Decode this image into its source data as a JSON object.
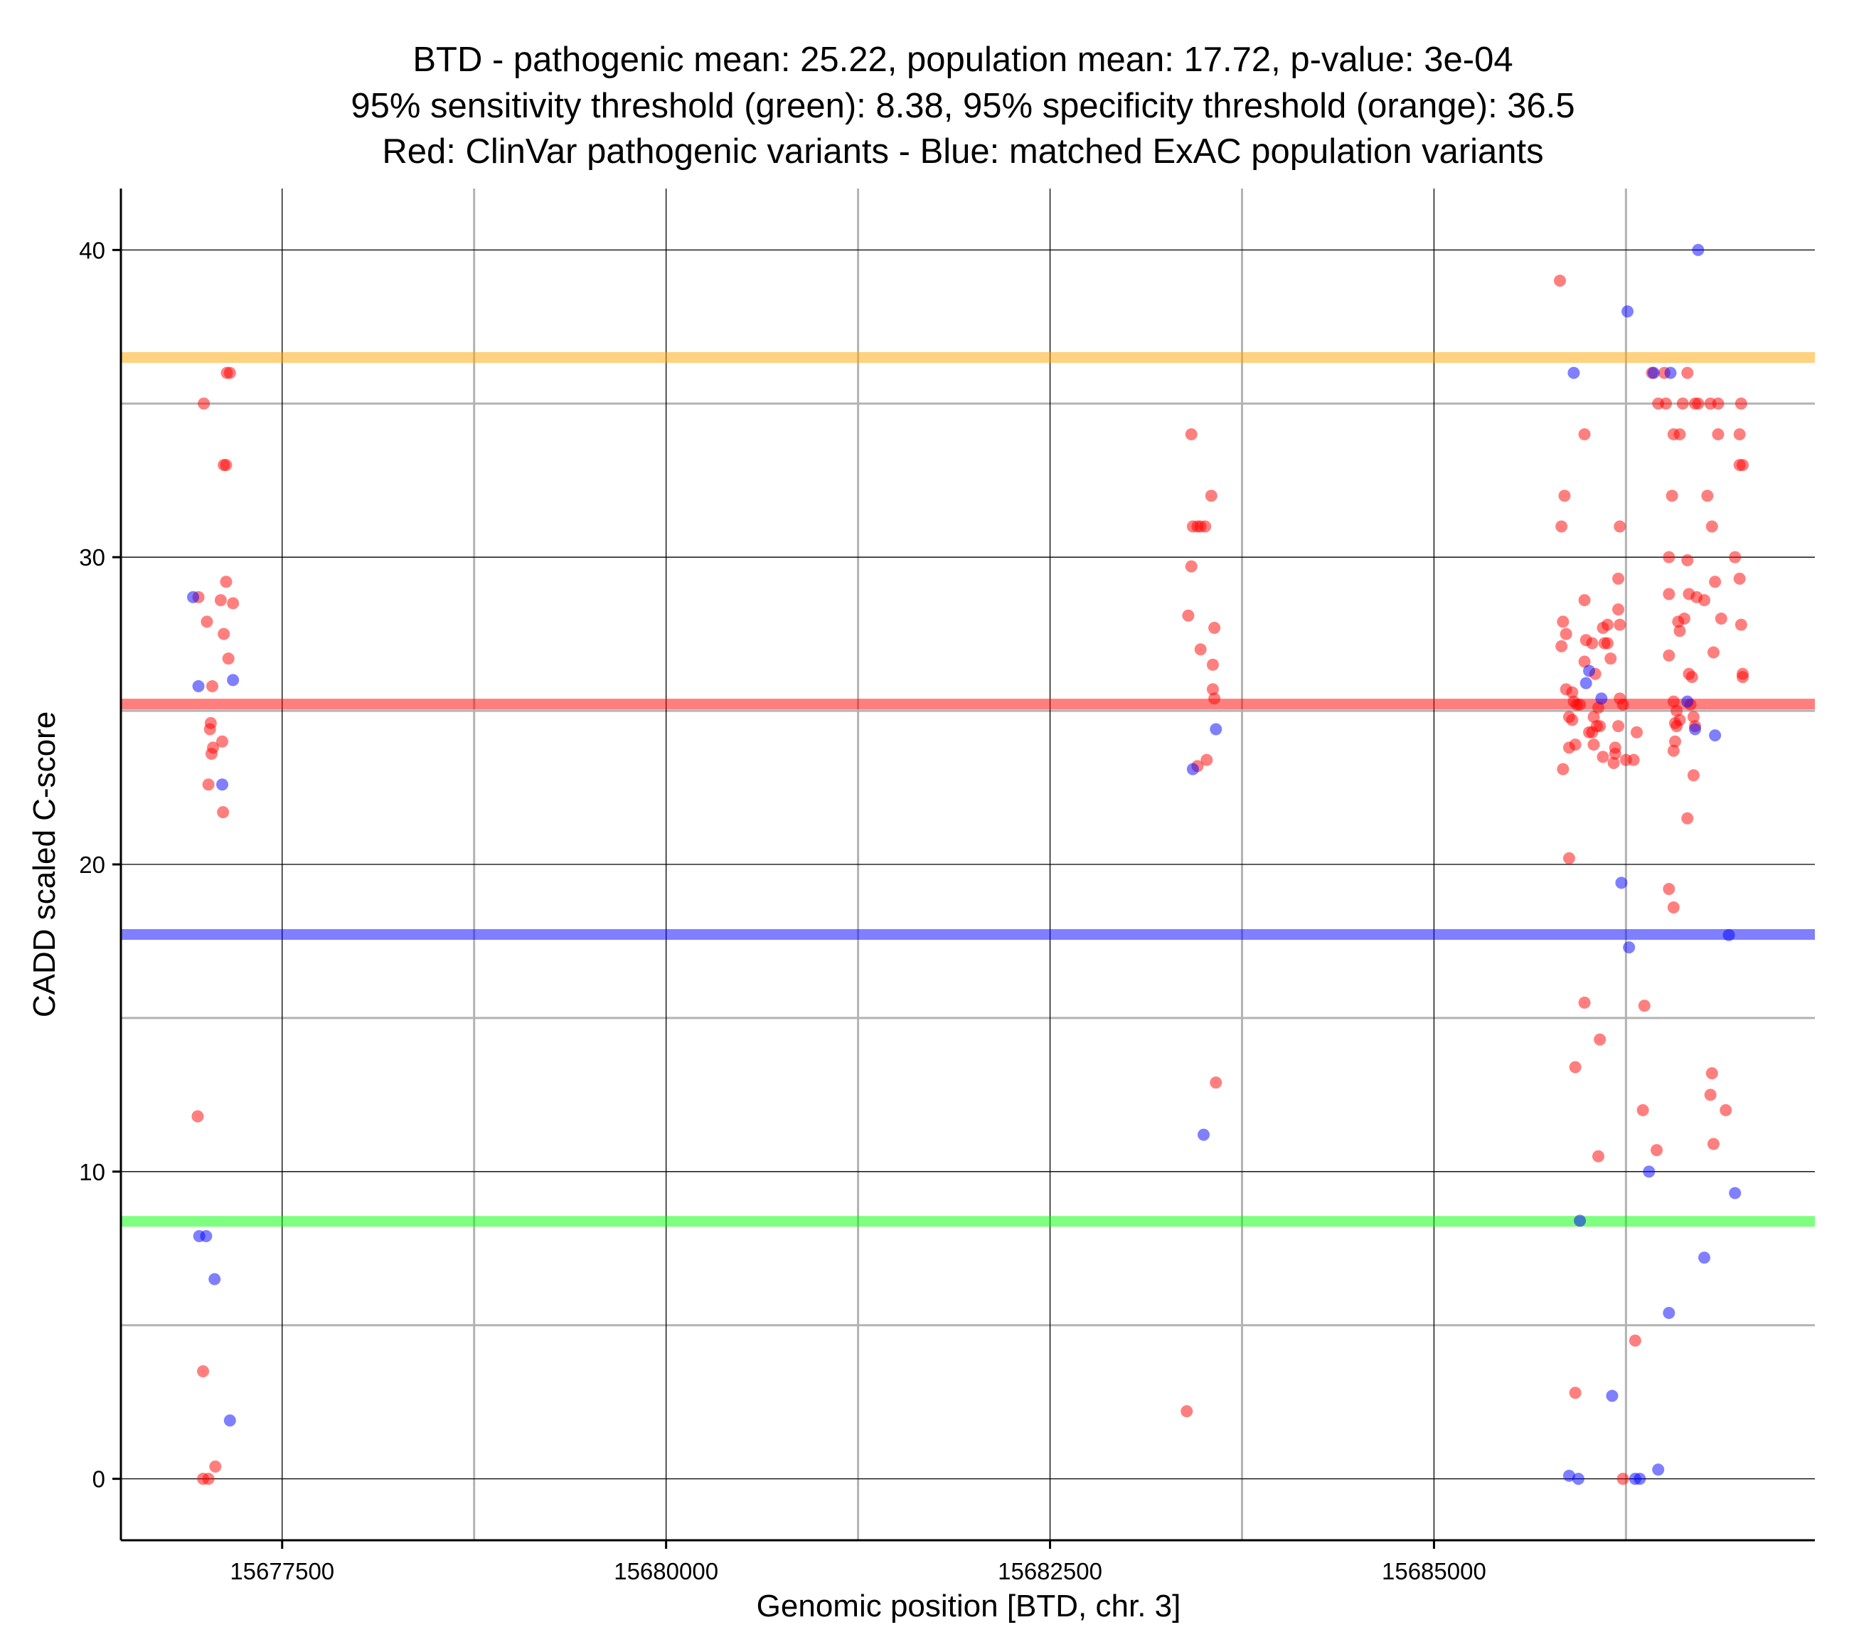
{
  "chart_data": {
    "type": "scatter",
    "title": [
      "BTD - pathogenic mean: 25.22, population mean: 17.72, p-value: 3e-04",
      "95% sensitivity threshold (green): 8.38, 95% specificity threshold (orange): 36.5",
      "Red: ClinVar pathogenic variants - Blue: matched ExAC population variants"
    ],
    "xlabel": "Genomic position [BTD, chr. 3]",
    "ylabel": "CADD scaled C-score",
    "xlim": [
      15676450,
      15687480
    ],
    "ylim": [
      -2,
      42
    ],
    "xticks": [
      15677500,
      15680000,
      15682500,
      15685000
    ],
    "xtick_labels": [
      "15677500",
      "15680000",
      "15682500",
      "15685000"
    ],
    "xminor": [
      15678750,
      15681250,
      15683750,
      15686250
    ],
    "yticks": [
      0,
      10,
      20,
      30,
      40
    ],
    "ytick_labels": [
      "0",
      "10",
      "20",
      "30",
      "40"
    ],
    "yminor": [
      5,
      15,
      25,
      35
    ],
    "hlines": [
      {
        "name": "specificity-threshold",
        "value": 36.5,
        "color": "#FFA500",
        "opacity": 0.5
      },
      {
        "name": "pathogenic-mean",
        "value": 25.22,
        "color": "#FF0000",
        "opacity": 0.5
      },
      {
        "name": "population-mean",
        "value": 17.72,
        "color": "#0000FF",
        "opacity": 0.5
      },
      {
        "name": "sensitivity-threshold",
        "value": 8.38,
        "color": "#00FF00",
        "opacity": 0.5
      }
    ],
    "series": [
      {
        "name": "ClinVar pathogenic variants",
        "color": "#FF0000",
        "opacity": 0.5,
        "points": [
          [
            15677160,
            36.0
          ],
          [
            15677140,
            36.0
          ],
          [
            15676990,
            35.0
          ],
          [
            15677120,
            33.0
          ],
          [
            15677135,
            33.0
          ],
          [
            15677135,
            29.2
          ],
          [
            15677100,
            28.6
          ],
          [
            15677180,
            28.5
          ],
          [
            15676955,
            28.7
          ],
          [
            15677010,
            27.9
          ],
          [
            15677120,
            27.5
          ],
          [
            15677150,
            26.7
          ],
          [
            15677045,
            25.8
          ],
          [
            15677035,
            24.6
          ],
          [
            15677030,
            24.4
          ],
          [
            15677110,
            24.0
          ],
          [
            15677050,
            23.8
          ],
          [
            15677040,
            23.6
          ],
          [
            15677020,
            22.6
          ],
          [
            15677115,
            21.7
          ],
          [
            15676950,
            11.8
          ],
          [
            15676985,
            3.5
          ],
          [
            15677065,
            0.4
          ],
          [
            15676985,
            0.0
          ],
          [
            15677020,
            0.0
          ],
          [
            15683420,
            34.0
          ],
          [
            15683550,
            32.0
          ],
          [
            15683430,
            31.0
          ],
          [
            15683460,
            31.0
          ],
          [
            15683480,
            31.0
          ],
          [
            15683510,
            31.0
          ],
          [
            15683420,
            29.7
          ],
          [
            15683400,
            28.1
          ],
          [
            15683570,
            27.7
          ],
          [
            15683480,
            27.0
          ],
          [
            15683560,
            26.5
          ],
          [
            15683560,
            25.7
          ],
          [
            15683570,
            25.4
          ],
          [
            15683520,
            23.4
          ],
          [
            15683460,
            23.2
          ],
          [
            15683580,
            12.9
          ],
          [
            15683390,
            2.2
          ],
          [
            15685820,
            39.0
          ],
          [
            15685850,
            32.0
          ],
          [
            15685830,
            31.0
          ],
          [
            15685840,
            27.9
          ],
          [
            15685860,
            27.5
          ],
          [
            15685830,
            27.1
          ],
          [
            15685860,
            25.7
          ],
          [
            15685880,
            24.8
          ],
          [
            15685900,
            25.6
          ],
          [
            15685910,
            25.3
          ],
          [
            15685930,
            25.2
          ],
          [
            15685950,
            25.2
          ],
          [
            15685980,
            28.6
          ],
          [
            15685980,
            26.6
          ],
          [
            15685990,
            27.3
          ],
          [
            15686030,
            27.2
          ],
          [
            15686050,
            26.2
          ],
          [
            15686070,
            25.1
          ],
          [
            15686100,
            27.7
          ],
          [
            15686110,
            27.2
          ],
          [
            15686130,
            27.8
          ],
          [
            15686130,
            27.2
          ],
          [
            15686010,
            24.3
          ],
          [
            15686030,
            24.3
          ],
          [
            15686060,
            24.5
          ],
          [
            15686080,
            24.5
          ],
          [
            15686040,
            24.8
          ],
          [
            15685900,
            24.7
          ],
          [
            15685880,
            23.8
          ],
          [
            15685920,
            23.9
          ],
          [
            15686100,
            23.5
          ],
          [
            15686150,
            26.7
          ],
          [
            15686170,
            23.3
          ],
          [
            15686180,
            23.6
          ],
          [
            15686180,
            23.8
          ],
          [
            15686040,
            23.9
          ],
          [
            15685840,
            23.1
          ],
          [
            15685880,
            20.2
          ],
          [
            15685980,
            34.0
          ],
          [
            15686210,
            31.0
          ],
          [
            15686200,
            29.3
          ],
          [
            15686200,
            28.3
          ],
          [
            15686210,
            27.8
          ],
          [
            15686210,
            25.4
          ],
          [
            15686200,
            24.5
          ],
          [
            15686230,
            25.2
          ],
          [
            15686250,
            23.4
          ],
          [
            15686300,
            23.4
          ],
          [
            15686320,
            24.3
          ],
          [
            15685980,
            15.5
          ],
          [
            15686080,
            14.3
          ],
          [
            15685920,
            13.4
          ],
          [
            15686070,
            10.5
          ],
          [
            15685920,
            2.8
          ],
          [
            15686230,
            0.0
          ],
          [
            15686420,
            36.0
          ],
          [
            15686500,
            36.0
          ],
          [
            15686650,
            36.0
          ],
          [
            15686460,
            35.0
          ],
          [
            15686510,
            35.0
          ],
          [
            15686620,
            35.0
          ],
          [
            15686700,
            35.0
          ],
          [
            15686720,
            35.0
          ],
          [
            15686800,
            35.0
          ],
          [
            15686850,
            35.0
          ],
          [
            15687000,
            35.0
          ],
          [
            15686560,
            34.0
          ],
          [
            15686600,
            34.0
          ],
          [
            15686850,
            34.0
          ],
          [
            15686990,
            34.0
          ],
          [
            15686990,
            33.0
          ],
          [
            15687010,
            33.0
          ],
          [
            15686550,
            32.0
          ],
          [
            15686780,
            32.0
          ],
          [
            15686810,
            31.0
          ],
          [
            15686530,
            30.0
          ],
          [
            15686650,
            29.9
          ],
          [
            15686960,
            30.0
          ],
          [
            15686990,
            29.3
          ],
          [
            15686830,
            29.2
          ],
          [
            15686530,
            28.8
          ],
          [
            15686660,
            28.8
          ],
          [
            15686710,
            28.7
          ],
          [
            15686760,
            28.6
          ],
          [
            15686630,
            28.0
          ],
          [
            15686590,
            27.9
          ],
          [
            15686870,
            28.0
          ],
          [
            15687000,
            27.8
          ],
          [
            15686600,
            27.6
          ],
          [
            15686530,
            26.8
          ],
          [
            15686820,
            26.9
          ],
          [
            15686660,
            26.2
          ],
          [
            15686680,
            26.1
          ],
          [
            15687010,
            26.2
          ],
          [
            15687010,
            26.1
          ],
          [
            15686560,
            25.3
          ],
          [
            15686580,
            25.0
          ],
          [
            15686670,
            25.2
          ],
          [
            15686570,
            24.6
          ],
          [
            15686600,
            24.7
          ],
          [
            15686580,
            24.5
          ],
          [
            15686690,
            24.8
          ],
          [
            15686700,
            24.5
          ],
          [
            15686570,
            24.0
          ],
          [
            15686560,
            23.7
          ],
          [
            15686690,
            22.9
          ],
          [
            15686650,
            21.5
          ],
          [
            15686530,
            19.2
          ],
          [
            15686560,
            18.6
          ],
          [
            15686370,
            15.4
          ],
          [
            15686810,
            13.2
          ],
          [
            15686800,
            12.5
          ],
          [
            15686900,
            12.0
          ],
          [
            15686360,
            12.0
          ],
          [
            15686450,
            10.7
          ],
          [
            15686820,
            10.9
          ],
          [
            15686310,
            4.5
          ]
        ]
      },
      {
        "name": "matched ExAC population variants",
        "color": "#0000FF",
        "opacity": 0.5,
        "points": [
          [
            15676920,
            28.7
          ],
          [
            15676955,
            25.8
          ],
          [
            15677180,
            26.0
          ],
          [
            15677110,
            22.6
          ],
          [
            15676960,
            7.9
          ],
          [
            15677005,
            7.9
          ],
          [
            15677060,
            6.5
          ],
          [
            15677160,
            1.9
          ],
          [
            15683580,
            24.4
          ],
          [
            15683430,
            23.1
          ],
          [
            15683500,
            11.2
          ],
          [
            15685910,
            36.0
          ],
          [
            15686260,
            38.0
          ],
          [
            15686430,
            36.0
          ],
          [
            15686540,
            36.0
          ],
          [
            15686720,
            40.0
          ],
          [
            15686010,
            26.3
          ],
          [
            15685990,
            25.9
          ],
          [
            15686090,
            25.4
          ],
          [
            15686650,
            25.3
          ],
          [
            15686700,
            24.4
          ],
          [
            15686830,
            24.2
          ],
          [
            15686220,
            19.4
          ],
          [
            15686270,
            17.3
          ],
          [
            15686920,
            17.7
          ],
          [
            15686400,
            10.0
          ],
          [
            15686960,
            9.3
          ],
          [
            15686760,
            7.2
          ],
          [
            15686530,
            5.4
          ],
          [
            15686160,
            2.7
          ],
          [
            15685880,
            0.1
          ],
          [
            15685940,
            0.0
          ],
          [
            15686310,
            0.0
          ],
          [
            15686340,
            0.0
          ],
          [
            15686460,
            0.3
          ],
          [
            15685950,
            8.4
          ]
        ]
      }
    ]
  }
}
